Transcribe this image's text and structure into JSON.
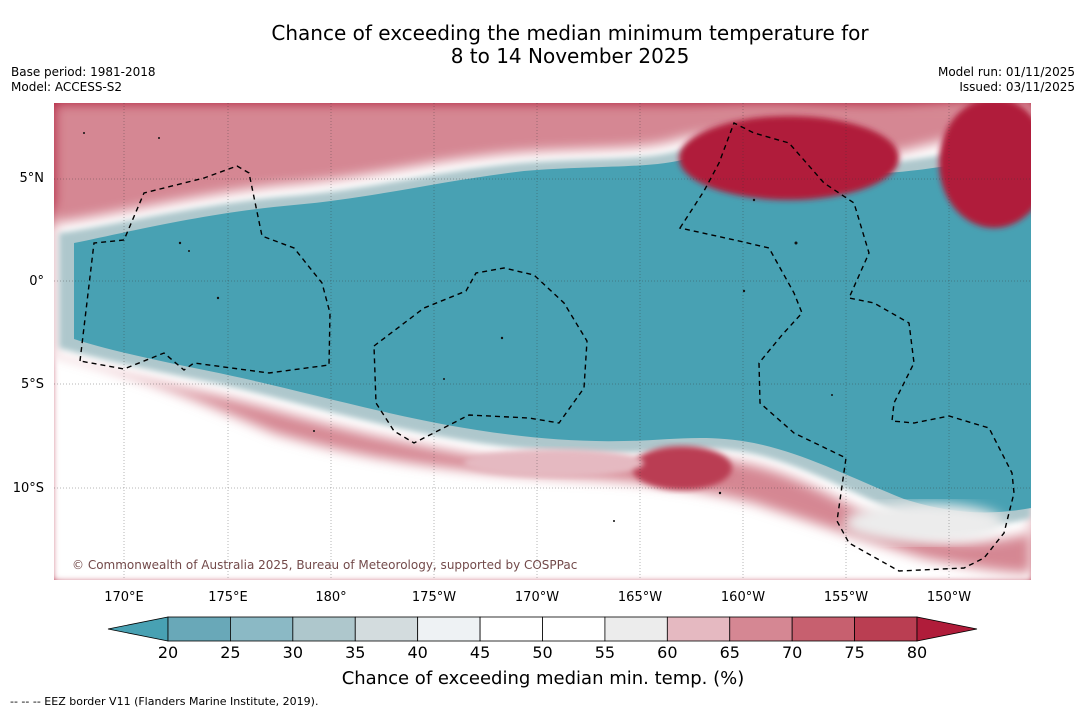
{
  "title": {
    "line1": "Chance of exceeding the median minimum temperature for",
    "line2": "8 to 14 November 2025"
  },
  "meta_left": {
    "base_period": "Base period: 1981-2018",
    "model": "Model: ACCESS-S2"
  },
  "meta_right": {
    "model_run": "Model run: 01/11/2025",
    "issued": "Issued: 03/11/2025"
  },
  "map": {
    "latitude_labels": [
      "5°N",
      "0°",
      "5°S",
      "10°S"
    ],
    "longitude_labels": [
      "170°E",
      "175°E",
      "180°",
      "175°W",
      "170°W",
      "165°W",
      "160°W",
      "155°W",
      "150°W"
    ],
    "copyright": "© Commonwealth of Australia 2025, Bureau of Meteorology, supported by COSPPac",
    "colors": {
      "ocean_low": "#48a1b3",
      "hot": "#b01c3a"
    }
  },
  "colorbar": {
    "ticks": [
      "20",
      "25",
      "30",
      "35",
      "40",
      "45",
      "50",
      "55",
      "60",
      "65",
      "70",
      "75",
      "80"
    ],
    "label": "Chance of exceeding median min. temp. (%)",
    "colors": [
      "#48a1b3",
      "#69a8b8",
      "#8bb9c5",
      "#aec7cc",
      "#d3dcde",
      "#eef2f4",
      "#ffffff",
      "#ffffff",
      "#ececec",
      "#e5b9c1",
      "#d58793",
      "#c7606f",
      "#ba3e52",
      "#b01c3a"
    ]
  },
  "footnote": "--  --  -- EEZ border V11 (Flanders Marine Institute, 2019)."
}
